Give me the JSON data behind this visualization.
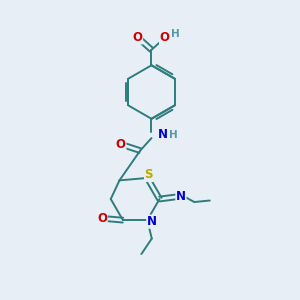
{
  "bg_color": "#e8eef5",
  "atom_colors": {
    "C": "#2d7d7d",
    "O": "#cc0000",
    "N": "#0000cc",
    "S": "#bbaa00",
    "H": "#5599aa"
  },
  "bond_color": "#2d7d7d"
}
